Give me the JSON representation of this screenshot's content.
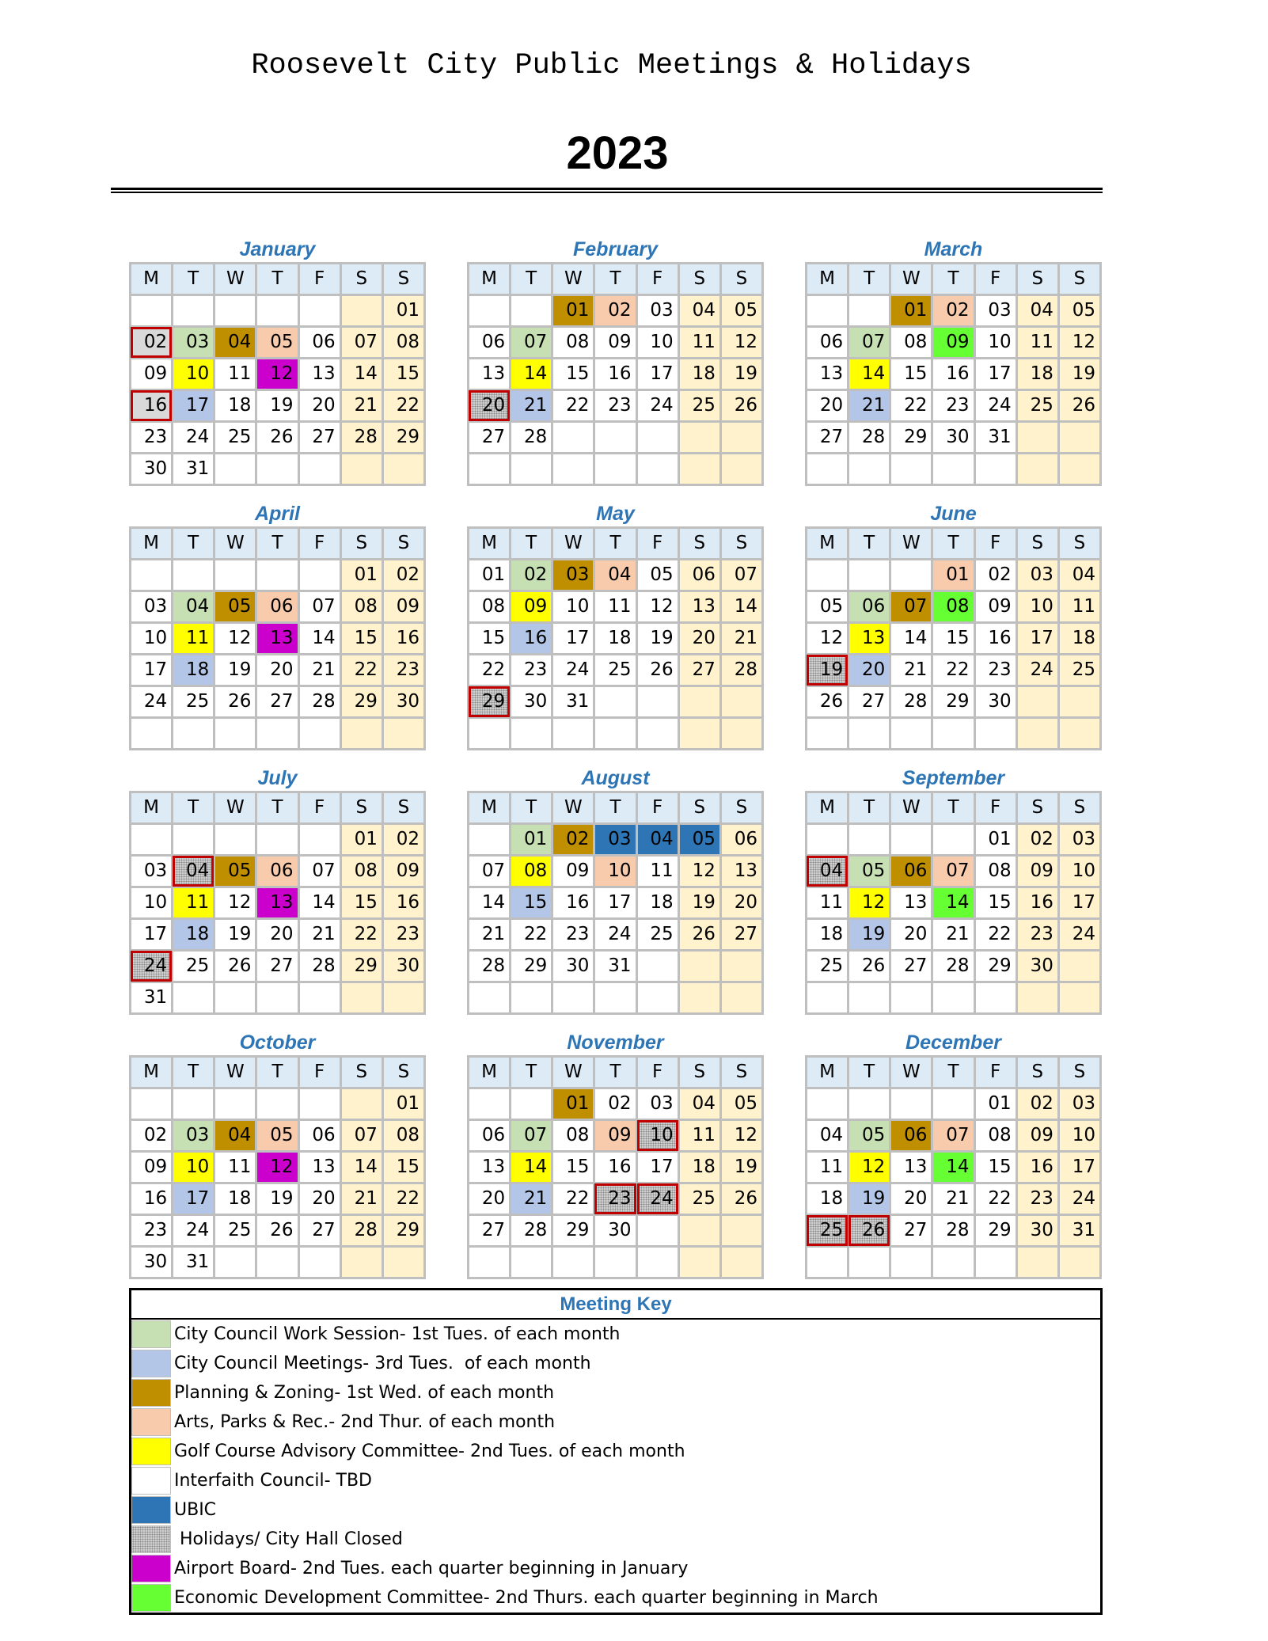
{
  "header": {
    "title": "Roosevelt City Public Meetings & Holidays",
    "year": "2023"
  },
  "weekday_headers": [
    "M",
    "T",
    "W",
    "T",
    "F",
    "S",
    "S"
  ],
  "colors": {
    "ws": "#C6E0B4",
    "cc": "#B4C6E7",
    "pz": "#BF8F00",
    "ap": "#F8CBAD",
    "gc": "#FFFF00",
    "it": "#FFFFFF",
    "ub": "#2E75B6",
    "hol": "#D0D0D0",
    "ab": "#CC00CC",
    "ed": "#66FF33",
    "weekend": "#FFF2CC",
    "header": "#DDEBF7",
    "month_title": "#2E75B6",
    "holiday_border": "#C00000"
  },
  "months": [
    {
      "name": "January",
      "first_weekday": "Sun",
      "days": 31,
      "marks": {
        "2": "holg",
        "3": "ws",
        "4": "pz",
        "5": "ap",
        "10": "gc",
        "12": "ab",
        "16": "holg",
        "17": "cc"
      }
    },
    {
      "name": "February",
      "first_weekday": "Wed",
      "days": 28,
      "marks": {
        "1": "pz",
        "2": "ap",
        "7": "ws",
        "14": "gc",
        "20": "hol",
        "21": "cc"
      }
    },
    {
      "name": "March",
      "first_weekday": "Wed",
      "days": 31,
      "marks": {
        "1": "pz",
        "2": "ap",
        "7": "ws",
        "9": "ed",
        "14": "gc",
        "21": "cc"
      }
    },
    {
      "name": "April",
      "first_weekday": "Sat",
      "days": 30,
      "marks": {
        "4": "ws",
        "5": "pz",
        "6": "ap",
        "11": "gc",
        "13": "ab",
        "18": "cc"
      }
    },
    {
      "name": "May",
      "first_weekday": "Mon",
      "days": 31,
      "marks": {
        "2": "ws",
        "3": "pz",
        "4": "ap",
        "9": "gc",
        "16": "cc",
        "29": "hol"
      }
    },
    {
      "name": "June",
      "first_weekday": "Thu",
      "days": 30,
      "marks": {
        "1": "ap",
        "6": "ws",
        "7": "pz",
        "8": "ed",
        "13": "gc",
        "19": "hol",
        "20": "cc"
      }
    },
    {
      "name": "July",
      "first_weekday": "Sat",
      "days": 31,
      "marks": {
        "4": "hol",
        "5": "pz",
        "6": "ap",
        "11": "gc",
        "13": "ab",
        "18": "cc",
        "24": "hol"
      }
    },
    {
      "name": "August",
      "first_weekday": "Tue",
      "days": 31,
      "marks": {
        "1": "ws",
        "2": "pz",
        "3": "ub",
        "4": "ub",
        "5": "ub",
        "8": "gc",
        "10": "ap",
        "15": "cc"
      }
    },
    {
      "name": "September",
      "first_weekday": "Fri",
      "days": 30,
      "marks": {
        "4": "hol",
        "5": "ws",
        "6": "pz",
        "7": "ap",
        "12": "gc",
        "14": "ed",
        "19": "cc"
      }
    },
    {
      "name": "October",
      "first_weekday": "Sun",
      "days": 31,
      "marks": {
        "3": "ws",
        "4": "pz",
        "5": "ap",
        "10": "gc",
        "12": "ab",
        "17": "cc"
      }
    },
    {
      "name": "November",
      "first_weekday": "Wed",
      "days": 30,
      "marks": {
        "1": "pz",
        "7": "ws",
        "9": "ap",
        "10": "hol",
        "14": "gc",
        "21": "cc",
        "23": "hol",
        "24": "hol"
      }
    },
    {
      "name": "December",
      "first_weekday": "Fri",
      "days": 31,
      "marks": {
        "5": "ws",
        "6": "pz",
        "7": "ap",
        "12": "gc",
        "14": "ed",
        "19": "cc",
        "25": "hol",
        "26": "hol"
      }
    }
  ],
  "legend": {
    "title": "Meeting Key",
    "items": [
      {
        "code": "ws",
        "label": "City Council Work Session- 1st Tues. of each month"
      },
      {
        "code": "cc",
        "label": "City Council Meetings- 3rd Tues.  of each month"
      },
      {
        "code": "pz",
        "label": "Planning & Zoning- 1st Wed. of each month"
      },
      {
        "code": "ap",
        "label": "Arts, Parks & Rec.- 2nd Thur. of each month"
      },
      {
        "code": "gc",
        "label": "Golf Course Advisory Committee- 2nd Tues. of each month"
      },
      {
        "code": "white",
        "label": "Interfaith Council- TBD"
      },
      {
        "code": "ub",
        "label": "UBIC"
      },
      {
        "code": "hol",
        "label": " Holidays/ City Hall Closed"
      },
      {
        "code": "ab",
        "label": "Airport Board- 2nd Tues. each quarter beginning in January"
      },
      {
        "code": "ed",
        "label": "Economic Development Committee- 2nd Thurs. each quarter beginning in March"
      }
    ]
  }
}
